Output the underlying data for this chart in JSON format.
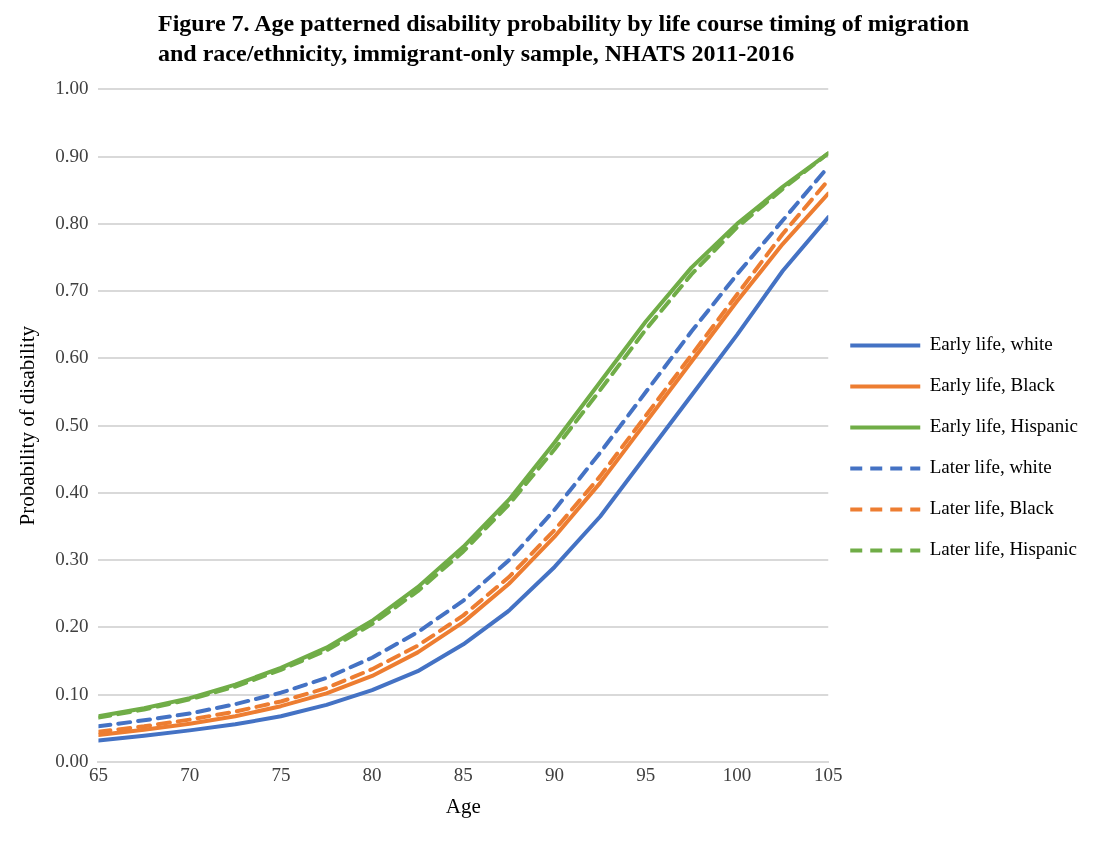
{
  "chart_data": {
    "type": "line",
    "title": "Figure 7. Age patterned disability probability by life course timing of migration and race/ethnicity, immigrant-only sample, NHATS 2011-2016",
    "xlabel": "Age",
    "ylabel": "Probability of disability",
    "x": [
      65,
      67.5,
      70,
      72.5,
      75,
      77.5,
      80,
      82.5,
      85,
      87.5,
      90,
      92.5,
      95,
      97.5,
      100,
      102.5,
      105
    ],
    "xlim": [
      65,
      105
    ],
    "xticks": [
      65,
      70,
      75,
      80,
      85,
      90,
      95,
      100,
      105
    ],
    "ylim": [
      0,
      1
    ],
    "yticks": [
      {
        "value": 0,
        "label": "0.00"
      },
      {
        "value": 0.1,
        "label": "0.10"
      },
      {
        "value": 0.2,
        "label": "0.20"
      },
      {
        "value": 0.3,
        "label": "0.30"
      },
      {
        "value": 0.4,
        "label": "0.40"
      },
      {
        "value": 0.5,
        "label": "0.50"
      },
      {
        "value": 0.6,
        "label": "0.60"
      },
      {
        "value": 0.7,
        "label": "0.70"
      },
      {
        "value": 0.8,
        "label": "0.80"
      },
      {
        "value": 0.9,
        "label": "0.90"
      },
      {
        "value": 1,
        "label": "1.00"
      }
    ],
    "grid": "y",
    "legend": "right",
    "marker": "none",
    "series": [
      {
        "name": "Early life, white",
        "color": "#4472c4",
        "line_style": "solid",
        "values": [
          0.032,
          0.039,
          0.047,
          0.056,
          0.068,
          0.085,
          0.107,
          0.135,
          0.175,
          0.225,
          0.29,
          0.365,
          0.455,
          0.545,
          0.635,
          0.73,
          0.81
        ]
      },
      {
        "name": "Early life, Black",
        "color": "#ed7d31",
        "line_style": "solid",
        "values": [
          0.04,
          0.048,
          0.057,
          0.068,
          0.083,
          0.102,
          0.128,
          0.163,
          0.208,
          0.265,
          0.335,
          0.415,
          0.505,
          0.595,
          0.685,
          0.77,
          0.845
        ]
      },
      {
        "name": "Early life, Hispanic",
        "color": "#70ad47",
        "line_style": "solid",
        "values": [
          0.068,
          0.08,
          0.095,
          0.115,
          0.14,
          0.17,
          0.21,
          0.26,
          0.32,
          0.39,
          0.475,
          0.565,
          0.655,
          0.735,
          0.8,
          0.855,
          0.905
        ]
      },
      {
        "name": "Later life, white",
        "color": "#4472c4",
        "line_style": "dashed",
        "values": [
          0.053,
          0.062,
          0.072,
          0.086,
          0.103,
          0.125,
          0.155,
          0.193,
          0.24,
          0.3,
          0.375,
          0.46,
          0.55,
          0.64,
          0.725,
          0.805,
          0.885
        ]
      },
      {
        "name": "Later life, Black",
        "color": "#ed7d31",
        "line_style": "dashed",
        "values": [
          0.045,
          0.053,
          0.063,
          0.075,
          0.09,
          0.11,
          0.138,
          0.173,
          0.218,
          0.275,
          0.345,
          0.425,
          0.515,
          0.605,
          0.695,
          0.785,
          0.865
        ]
      },
      {
        "name": "Later life, Hispanic",
        "color": "#70ad47",
        "line_style": "dashed",
        "values": [
          0.066,
          0.078,
          0.093,
          0.112,
          0.137,
          0.166,
          0.205,
          0.254,
          0.313,
          0.383,
          0.465,
          0.553,
          0.643,
          0.725,
          0.795,
          0.852,
          0.905
        ]
      }
    ]
  }
}
